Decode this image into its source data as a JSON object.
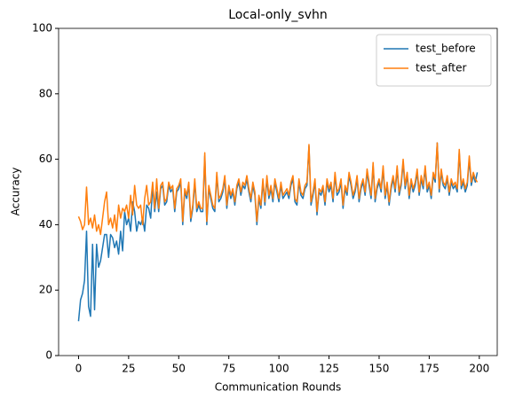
{
  "chart_data": {
    "type": "line",
    "title": "Local-only_svhn",
    "xlabel": "Communication Rounds",
    "ylabel": "Accuracy",
    "x": [
      0,
      1,
      2,
      3,
      4,
      5,
      6,
      7,
      8,
      9,
      10,
      11,
      12,
      13,
      14,
      15,
      16,
      17,
      18,
      19,
      20,
      21,
      22,
      23,
      24,
      25,
      26,
      27,
      28,
      29,
      30,
      31,
      32,
      33,
      34,
      35,
      36,
      37,
      38,
      39,
      40,
      41,
      42,
      43,
      44,
      45,
      46,
      47,
      48,
      49,
      50,
      51,
      52,
      53,
      54,
      55,
      56,
      57,
      58,
      59,
      60,
      61,
      62,
      63,
      64,
      65,
      66,
      67,
      68,
      69,
      70,
      71,
      72,
      73,
      74,
      75,
      76,
      77,
      78,
      79,
      80,
      81,
      82,
      83,
      84,
      85,
      86,
      87,
      88,
      89,
      90,
      91,
      92,
      93,
      94,
      95,
      96,
      97,
      98,
      99,
      100,
      101,
      102,
      103,
      104,
      105,
      106,
      107,
      108,
      109,
      110,
      111,
      112,
      113,
      114,
      115,
      116,
      117,
      118,
      119,
      120,
      121,
      122,
      123,
      124,
      125,
      126,
      127,
      128,
      129,
      130,
      131,
      132,
      133,
      134,
      135,
      136,
      137,
      138,
      139,
      140,
      141,
      142,
      143,
      144,
      145,
      146,
      147,
      148,
      149,
      150,
      151,
      152,
      153,
      154,
      155,
      156,
      157,
      158,
      159,
      160,
      161,
      162,
      163,
      164,
      165,
      166,
      167,
      168,
      169,
      170,
      171,
      172,
      173,
      174,
      175,
      176,
      177,
      178,
      179,
      180,
      181,
      182,
      183,
      184,
      185,
      186,
      187,
      188,
      189,
      190,
      191,
      192,
      193,
      194,
      195,
      196,
      197,
      198,
      199
    ],
    "series": [
      {
        "name": "test_before",
        "color": "#1f77b4",
        "values": [
          10.5,
          17,
          19,
          23,
          38,
          15,
          12,
          34,
          14,
          34,
          27,
          29,
          33,
          37,
          37,
          30,
          37,
          36,
          33,
          35,
          31,
          38,
          32,
          44,
          40,
          42,
          38,
          47,
          44,
          38,
          41,
          40,
          42,
          38,
          46,
          45,
          42,
          52,
          44,
          50,
          44,
          51,
          52,
          46,
          47,
          52,
          50,
          51,
          44,
          50,
          51,
          53,
          40,
          50,
          48,
          52,
          41,
          45,
          53,
          44,
          46,
          44,
          44,
          61,
          40,
          51,
          48,
          45,
          44,
          55,
          47,
          48,
          50,
          54,
          45,
          51,
          48,
          50,
          46,
          51,
          53,
          49,
          52,
          51,
          54,
          50,
          47,
          52,
          49,
          40,
          48,
          45,
          53,
          46,
          54,
          48,
          51,
          47,
          53,
          50,
          47,
          52,
          48,
          49,
          50,
          48,
          52,
          54,
          47,
          46,
          53,
          49,
          48,
          51,
          52,
          64,
          46,
          49,
          53,
          43,
          50,
          49,
          51,
          46,
          53,
          50,
          52,
          47,
          55,
          49,
          50,
          53,
          45,
          51,
          49,
          55,
          52,
          48,
          50,
          54,
          47,
          51,
          53,
          49,
          56,
          52,
          48,
          58,
          47,
          51,
          53,
          50,
          57,
          48,
          52,
          46,
          51,
          54,
          50,
          57,
          49,
          52,
          59,
          51,
          55,
          48,
          53,
          50,
          52,
          56,
          49,
          54,
          51,
          57,
          50,
          52,
          48,
          55,
          53,
          65,
          50,
          56,
          52,
          51,
          54,
          49,
          53,
          51,
          52,
          50,
          62,
          51,
          53,
          50,
          52,
          60,
          52,
          55,
          53,
          56
        ]
      },
      {
        "name": "test_after",
        "color": "#ff7f0e",
        "values": [
          42.5,
          41,
          38.5,
          40,
          51.5,
          40,
          42,
          39,
          43,
          38,
          40,
          37,
          42,
          47,
          50,
          40,
          42,
          39,
          43,
          38,
          46,
          42,
          45,
          44,
          46,
          42,
          49,
          43,
          52,
          46,
          45,
          46,
          40,
          48,
          52,
          46,
          47,
          53,
          45,
          54,
          45,
          52,
          53,
          47,
          48,
          53,
          51,
          52,
          45,
          51,
          52,
          54,
          41,
          51,
          49,
          53,
          42,
          46,
          54,
          45,
          47,
          45,
          45,
          62,
          41,
          52,
          49,
          46,
          45,
          56,
          48,
          49,
          51,
          55,
          46,
          52,
          49,
          51,
          47,
          52,
          54,
          50,
          53,
          52,
          55,
          51,
          48,
          53,
          50,
          41,
          49,
          46,
          54,
          47,
          55,
          49,
          52,
          48,
          54,
          51,
          48,
          53,
          49,
          50,
          51,
          49,
          53,
          55,
          48,
          47,
          54,
          50,
          49,
          52,
          53,
          64.5,
          47,
          50,
          54,
          44,
          51,
          50,
          52,
          47,
          54,
          51,
          53,
          48,
          56,
          50,
          51,
          54,
          46,
          52,
          50,
          56,
          53,
          49,
          51,
          55,
          48,
          52,
          54,
          50,
          57,
          53,
          49,
          59,
          48,
          52,
          54,
          51,
          58,
          49,
          53,
          47,
          52,
          55,
          51,
          58,
          50,
          53,
          60,
          52,
          56,
          49,
          54,
          51,
          53,
          57,
          50,
          55,
          52,
          58,
          51,
          53,
          49,
          56,
          54,
          65,
          51,
          57,
          53,
          52,
          55,
          50,
          54,
          52,
          53,
          51,
          63,
          52,
          54,
          51,
          53,
          61,
          53,
          56,
          54,
          53
        ]
      }
    ],
    "xlim": [
      -9.95,
      208.95
    ],
    "xticks": [
      0,
      25,
      50,
      75,
      100,
      125,
      150,
      175,
      200
    ],
    "ylim": [
      0,
      100
    ],
    "yticks": [
      0,
      20,
      40,
      60,
      80,
      100
    ],
    "grid": false,
    "legend": "upper right"
  }
}
